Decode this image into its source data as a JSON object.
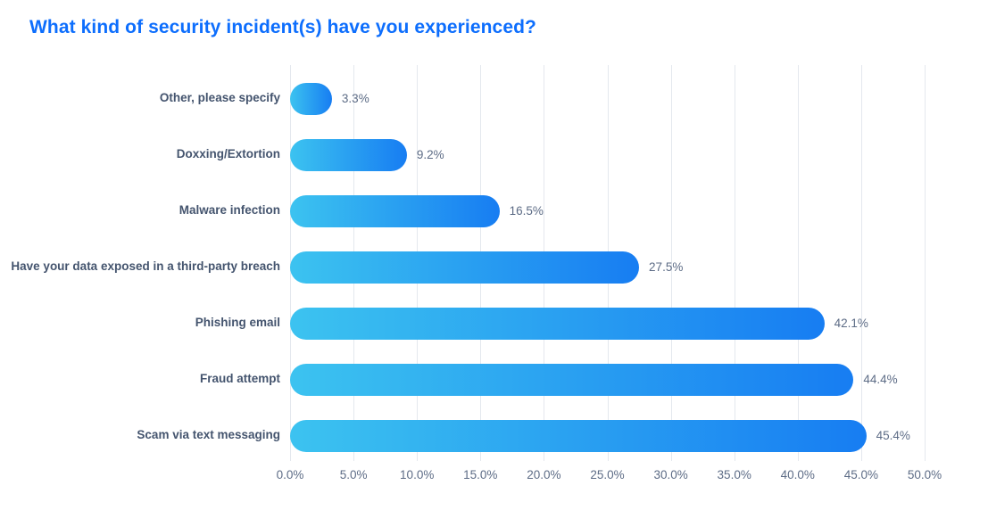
{
  "title": "What kind of security incident(s) have you experienced?",
  "colors": {
    "title": "#0d6efd",
    "category_label": "#44546e",
    "value_label": "#5d6c86",
    "gridline": "#e4e8ee",
    "bar_gradient_start": "#3cc3f0",
    "bar_gradient_end": "#177df2",
    "background": "#ffffff"
  },
  "chart_data": {
    "type": "bar",
    "orientation": "horizontal",
    "title": "What kind of security incident(s) have you experienced?",
    "categories": [
      "Other, please specify",
      "Doxxing/Extortion",
      "Malware infection",
      "Have your data exposed in a third-party breach",
      "Phishing email",
      "Fraud attempt",
      "Scam via text messaging"
    ],
    "values": [
      3.3,
      9.2,
      16.5,
      27.5,
      42.1,
      44.4,
      45.4
    ],
    "value_labels": [
      "3.3%",
      "9.2%",
      "16.5%",
      "27.5%",
      "42.1%",
      "44.4%",
      "45.4%"
    ],
    "xlabel": "",
    "ylabel": "",
    "xlim": [
      0,
      50
    ],
    "x_ticks": [
      "0.0%",
      "5.0%",
      "10.0%",
      "15.0%",
      "20.0%",
      "25.0%",
      "30.0%",
      "35.0%",
      "40.0%",
      "45.0%",
      "50.0%"
    ],
    "grid": true,
    "legend": false
  }
}
